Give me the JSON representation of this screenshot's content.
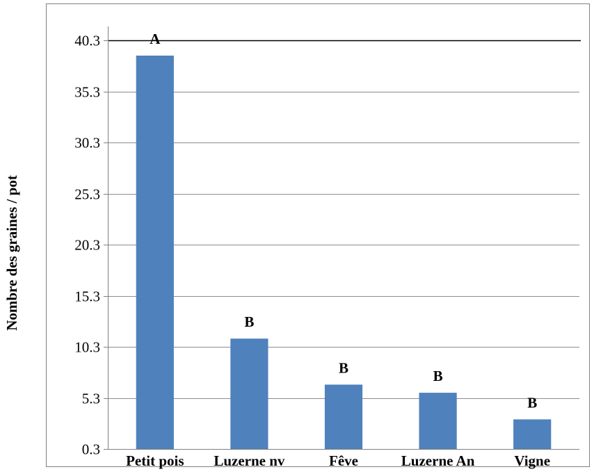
{
  "chart_data": {
    "type": "bar",
    "title": "",
    "xlabel": "",
    "ylabel": "Nombre des graines / pot",
    "categories": [
      "Petit pois",
      "Luzerne nv",
      "Fêve",
      "Luzerne An",
      "Vigne"
    ],
    "values": [
      38.8,
      11.1,
      6.6,
      5.8,
      3.2
    ],
    "significance_labels": [
      "A",
      "B",
      "B",
      "B",
      "B"
    ],
    "yticks": [
      "0.3",
      "5.3",
      "10.3",
      "15.3",
      "20.3",
      "25.3",
      "30.3",
      "35.3",
      "40.3"
    ],
    "ylim": [
      0.3,
      40.3
    ],
    "grid": true,
    "legend": "none",
    "bar_color": "#4F81BD"
  }
}
